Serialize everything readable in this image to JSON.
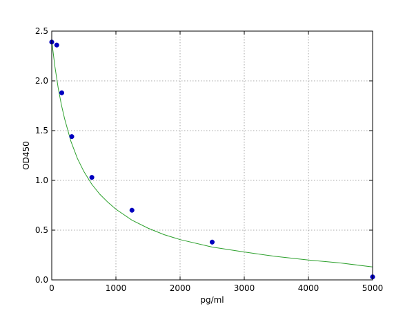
{
  "chart_data": {
    "type": "scatter",
    "title": "",
    "xlabel": "pg/ml",
    "ylabel": "OD450",
    "xlim": [
      0,
      5000
    ],
    "ylim": [
      0,
      2.5
    ],
    "x_ticks": [
      0,
      1000,
      2000,
      3000,
      4000,
      5000
    ],
    "x_tick_labels": [
      "0",
      "1000",
      "2000",
      "3000",
      "4000",
      "5000"
    ],
    "y_ticks": [
      0.0,
      0.5,
      1.0,
      1.5,
      2.0,
      2.5
    ],
    "y_tick_labels": [
      "0.0",
      "0.5",
      "1.0",
      "1.5",
      "2.0",
      "2.5"
    ],
    "grid": true,
    "series": [
      {
        "type": "scatter",
        "color": "#0000bf",
        "x": [
          0,
          78,
          156,
          312,
          625,
          1250,
          2500,
          5000
        ],
        "y": [
          2.39,
          2.36,
          1.88,
          1.44,
          1.03,
          0.7,
          0.38,
          0.03
        ]
      },
      {
        "type": "line",
        "color": "#2ca02c",
        "x": [
          0,
          50,
          100,
          150,
          200,
          300,
          400,
          500,
          625,
          750,
          875,
          1000,
          1250,
          1500,
          1750,
          2000,
          2500,
          3000,
          3500,
          4000,
          4500,
          5000
        ],
        "y": [
          2.4,
          2.14,
          1.93,
          1.76,
          1.62,
          1.39,
          1.22,
          1.09,
          0.96,
          0.86,
          0.78,
          0.71,
          0.6,
          0.52,
          0.455,
          0.405,
          0.33,
          0.28,
          0.235,
          0.2,
          0.17,
          0.13
        ]
      }
    ]
  }
}
